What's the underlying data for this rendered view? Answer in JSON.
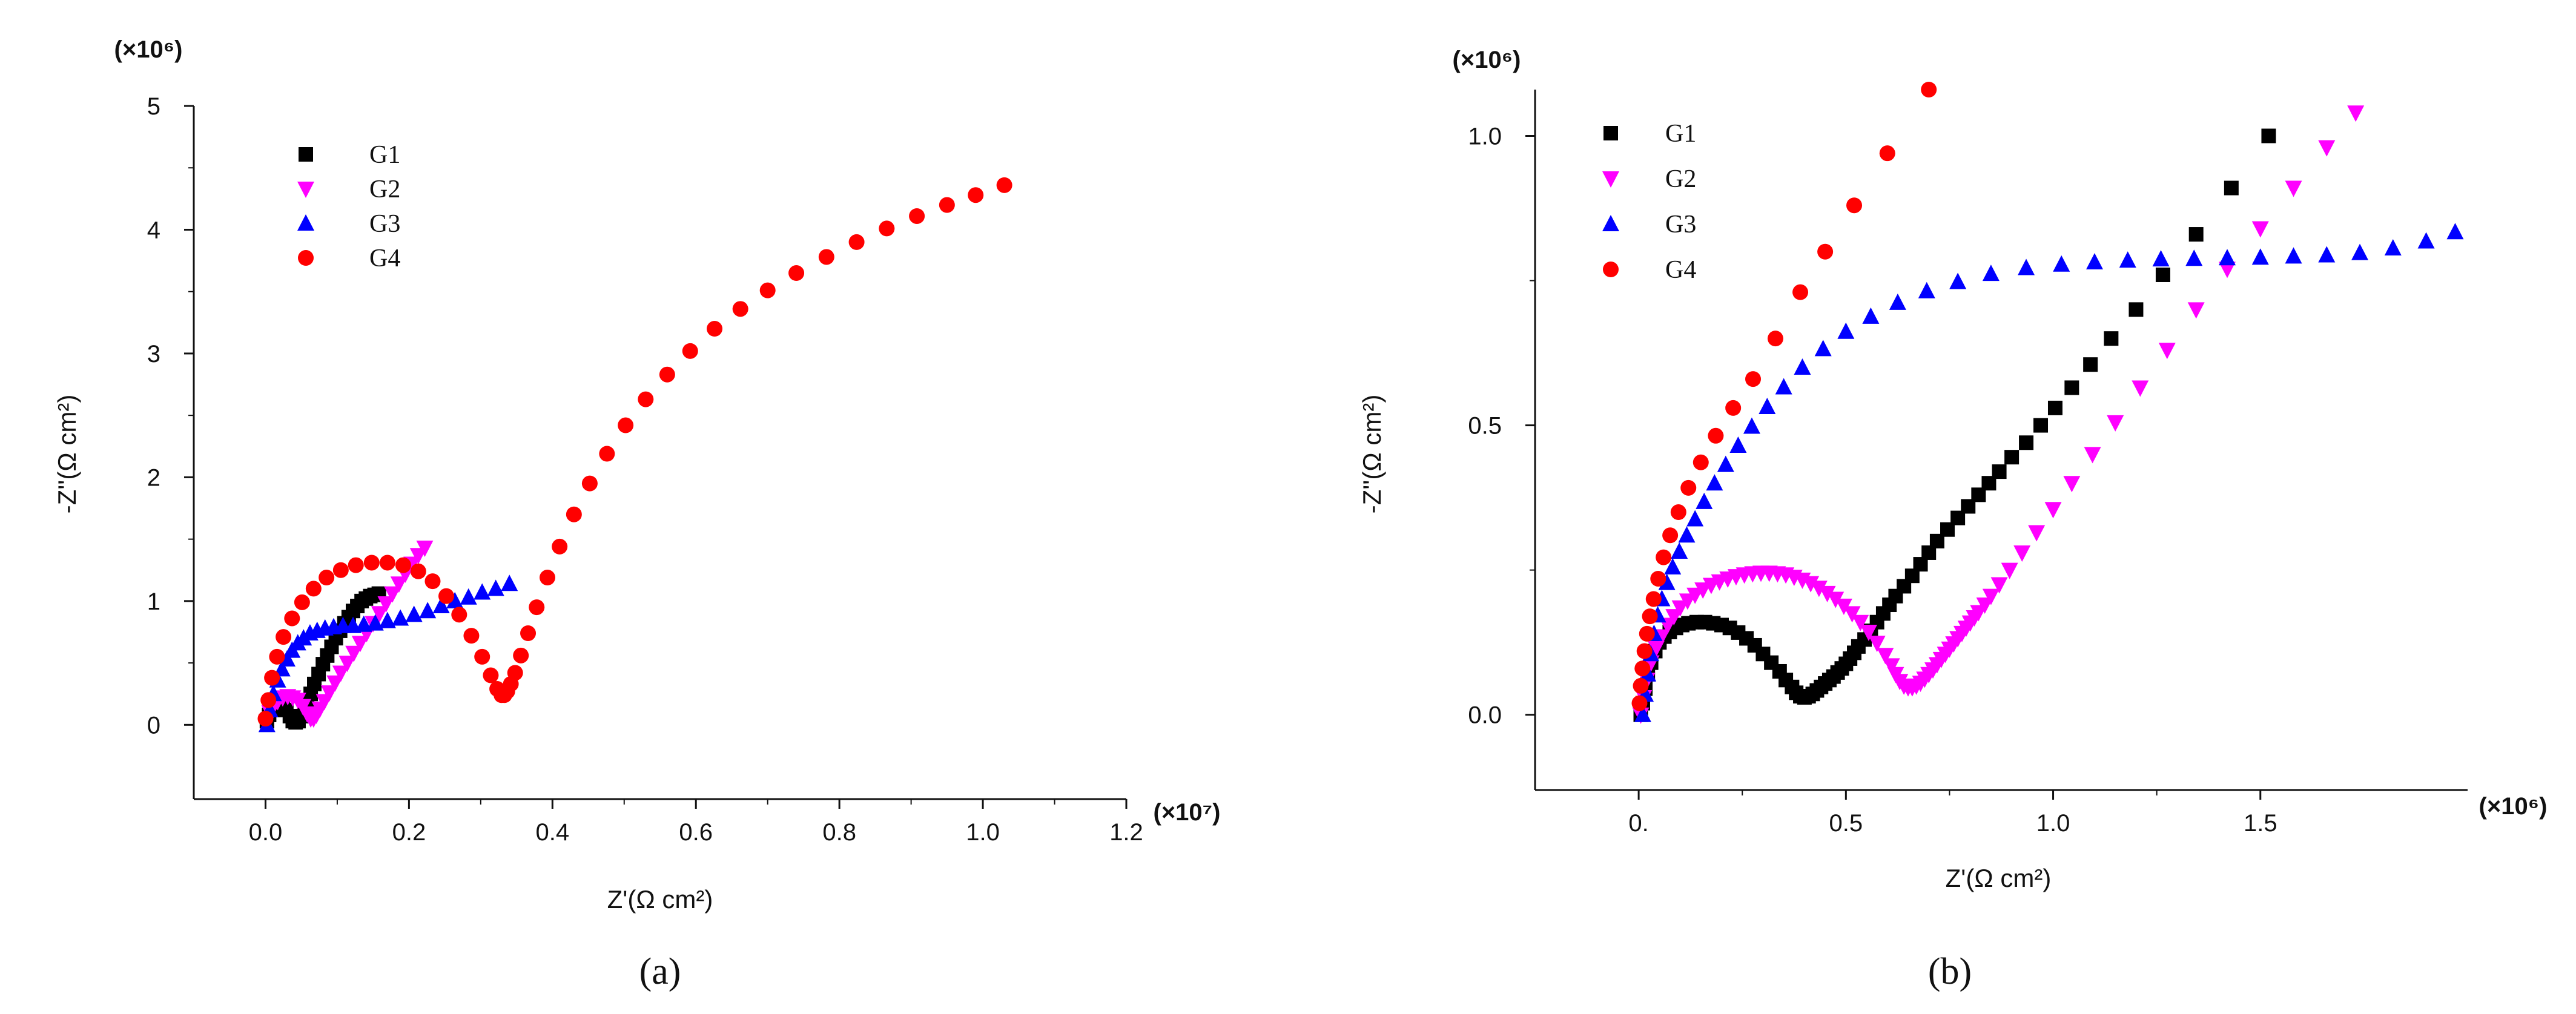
{
  "figure": {
    "panel_a_label": "(a)",
    "panel_b_label": "(b)"
  },
  "colors": {
    "G1": "#000000",
    "G2": "#ff00ff",
    "G3": "#0000ff",
    "G4": "#ff0000"
  },
  "chart_data": [
    {
      "type": "scatter",
      "panel": "a",
      "xlabel": "Z'(Ω cm²)",
      "ylabel": "-Z''(Ω cm²)",
      "x_multiplier": "(×10⁷)",
      "y_multiplier": "(×10⁶)",
      "xlim": [
        -0.1,
        1.2
      ],
      "ylim": [
        -0.6,
        5
      ],
      "xticks": [
        0.0,
        0.2,
        0.4,
        0.6,
        0.8,
        1.0,
        1.2
      ],
      "xtick_labels": [
        "0.0",
        "0.2",
        "0.4",
        "0.6",
        "0.8",
        "1.0",
        "1.2"
      ],
      "yticks": [
        0,
        1,
        2,
        3,
        4,
        5
      ],
      "ytick_labels": [
        "0",
        "1",
        "2",
        "3",
        "4",
        "5"
      ],
      "legend": {
        "placement": "top-left",
        "entries": [
          "G1",
          "G2",
          "G3",
          "G4"
        ]
      },
      "series": [
        {
          "name": "G1",
          "marker": "square",
          "color": "#000000",
          "x": [
            0.002,
            0.005,
            0.009,
            0.014,
            0.019,
            0.024,
            0.029,
            0.034,
            0.038,
            0.042,
            0.046,
            0.05,
            0.054,
            0.058,
            0.063,
            0.068,
            0.074,
            0.08,
            0.086,
            0.092,
            0.098,
            0.104,
            0.11,
            0.116,
            0.122,
            0.128,
            0.134,
            0.14,
            0.146,
            0.152,
            0.158
          ],
          "y": [
            0.03,
            0.08,
            0.12,
            0.15,
            0.16,
            0.15,
            0.12,
            0.07,
            0.03,
            0.02,
            0.03,
            0.07,
            0.12,
            0.18,
            0.25,
            0.33,
            0.41,
            0.49,
            0.56,
            0.63,
            0.7,
            0.76,
            0.82,
            0.87,
            0.92,
            0.96,
            1.0,
            1.02,
            1.04,
            1.05,
            1.06
          ]
        },
        {
          "name": "G2",
          "marker": "triangle-down",
          "color": "#ff00ff",
          "x": [
            0.002,
            0.006,
            0.011,
            0.017,
            0.024,
            0.031,
            0.038,
            0.045,
            0.052,
            0.058,
            0.063,
            0.067,
            0.071,
            0.076,
            0.082,
            0.089,
            0.097,
            0.105,
            0.114,
            0.123,
            0.132,
            0.141,
            0.15,
            0.159,
            0.168,
            0.177,
            0.186,
            0.195,
            0.204,
            0.213,
            0.222
          ],
          "y": [
            0.03,
            0.1,
            0.15,
            0.19,
            0.22,
            0.23,
            0.22,
            0.2,
            0.15,
            0.09,
            0.05,
            0.05,
            0.08,
            0.13,
            0.19,
            0.26,
            0.34,
            0.42,
            0.5,
            0.58,
            0.66,
            0.74,
            0.82,
            0.9,
            0.98,
            1.06,
            1.14,
            1.22,
            1.3,
            1.37,
            1.43
          ]
        },
        {
          "name": "G3",
          "marker": "triangle-up",
          "color": "#0000ff",
          "x": [
            0.002,
            0.006,
            0.011,
            0.017,
            0.023,
            0.03,
            0.037,
            0.045,
            0.053,
            0.062,
            0.072,
            0.083,
            0.095,
            0.108,
            0.122,
            0.137,
            0.153,
            0.17,
            0.188,
            0.207,
            0.226,
            0.245,
            0.264,
            0.283,
            0.302,
            0.321,
            0.34
          ],
          "y": [
            0.0,
            0.12,
            0.25,
            0.36,
            0.45,
            0.53,
            0.6,
            0.66,
            0.7,
            0.74,
            0.76,
            0.78,
            0.79,
            0.8,
            0.8,
            0.81,
            0.82,
            0.84,
            0.86,
            0.89,
            0.92,
            0.96,
            1.0,
            1.03,
            1.07,
            1.1,
            1.14
          ]
        },
        {
          "name": "G4",
          "marker": "circle",
          "color": "#ff0000",
          "x": [
            0.0,
            0.004,
            0.009,
            0.016,
            0.025,
            0.037,
            0.051,
            0.067,
            0.085,
            0.105,
            0.126,
            0.148,
            0.17,
            0.192,
            0.213,
            0.233,
            0.252,
            0.27,
            0.287,
            0.302,
            0.314,
            0.323,
            0.329,
            0.333,
            0.337,
            0.342,
            0.348,
            0.356,
            0.366,
            0.378,
            0.393,
            0.41,
            0.43,
            0.452,
            0.476,
            0.502,
            0.53,
            0.56,
            0.592,
            0.626,
            0.662,
            0.7,
            0.74,
            0.782,
            0.824,
            0.866,
            0.908,
            0.95,
            0.99,
            1.03
          ],
          "y": [
            0.05,
            0.2,
            0.38,
            0.55,
            0.71,
            0.86,
            0.99,
            1.1,
            1.19,
            1.25,
            1.29,
            1.31,
            1.31,
            1.29,
            1.24,
            1.16,
            1.04,
            0.89,
            0.72,
            0.55,
            0.4,
            0.29,
            0.24,
            0.24,
            0.27,
            0.33,
            0.42,
            0.56,
            0.74,
            0.95,
            1.19,
            1.44,
            1.7,
            1.95,
            2.19,
            2.42,
            2.63,
            2.83,
            3.02,
            3.2,
            3.36,
            3.51,
            3.65,
            3.78,
            3.9,
            4.01,
            4.11,
            4.2,
            4.28,
            4.36
          ]
        }
      ]
    },
    {
      "type": "scatter",
      "panel": "b",
      "xlabel": "Z'(Ω cm²)",
      "ylabel": "-Z''(Ω cm²)",
      "x_multiplier": "(×10⁶)",
      "y_multiplier": "(×10⁶)",
      "xlim": [
        -0.25,
        2.0
      ],
      "ylim": [
        -0.13,
        1.08
      ],
      "xticks": [
        0.0,
        0.5,
        1.0,
        1.5
      ],
      "xtick_labels": [
        "0.",
        "0.5",
        "1.0",
        "1.5"
      ],
      "yticks": [
        0.0,
        0.5,
        1.0
      ],
      "ytick_labels": [
        "0.0",
        "0.5",
        "1.0"
      ],
      "legend": {
        "placement": "top-left",
        "entries": [
          "G1",
          "G2",
          "G3",
          "G4"
        ]
      },
      "series": [
        {
          "name": "G1",
          "marker": "square",
          "color": "#000000",
          "x": [
            0.005,
            0.01,
            0.016,
            0.022,
            0.03,
            0.04,
            0.05,
            0.062,
            0.075,
            0.09,
            0.105,
            0.12,
            0.14,
            0.16,
            0.18,
            0.2,
            0.22,
            0.24,
            0.26,
            0.28,
            0.3,
            0.32,
            0.34,
            0.355,
            0.37,
            0.38,
            0.39,
            0.4,
            0.41,
            0.42,
            0.43,
            0.44,
            0.45,
            0.46,
            0.47,
            0.48,
            0.49,
            0.5,
            0.51,
            0.52,
            0.53,
            0.545,
            0.56,
            0.575,
            0.59,
            0.605,
            0.62,
            0.64,
            0.66,
            0.68,
            0.7,
            0.72,
            0.745,
            0.77,
            0.795,
            0.82,
            0.845,
            0.87,
            0.9,
            0.935,
            0.97,
            1.005,
            1.045,
            1.09,
            1.14,
            1.2,
            1.265,
            1.345,
            1.43,
            1.52
          ],
          "y": [
            0.0,
            0.02,
            0.045,
            0.07,
            0.09,
            0.11,
            0.125,
            0.135,
            0.143,
            0.15,
            0.155,
            0.158,
            0.16,
            0.16,
            0.158,
            0.155,
            0.15,
            0.142,
            0.132,
            0.12,
            0.105,
            0.09,
            0.075,
            0.06,
            0.048,
            0.038,
            0.032,
            0.03,
            0.032,
            0.036,
            0.042,
            0.048,
            0.054,
            0.06,
            0.066,
            0.073,
            0.08,
            0.088,
            0.097,
            0.107,
            0.118,
            0.13,
            0.145,
            0.16,
            0.175,
            0.19,
            0.205,
            0.222,
            0.24,
            0.26,
            0.28,
            0.3,
            0.32,
            0.34,
            0.36,
            0.38,
            0.4,
            0.42,
            0.445,
            0.47,
            0.5,
            0.53,
            0.565,
            0.605,
            0.65,
            0.7,
            0.76,
            0.83,
            0.91,
            1.0
          ]
        },
        {
          "name": "G2",
          "marker": "triangle-down",
          "color": "#ff00ff",
          "x": [
            0.005,
            0.012,
            0.02,
            0.03,
            0.042,
            0.055,
            0.07,
            0.085,
            0.1,
            0.118,
            0.136,
            0.155,
            0.175,
            0.195,
            0.215,
            0.235,
            0.255,
            0.275,
            0.295,
            0.315,
            0.335,
            0.355,
            0.375,
            0.395,
            0.415,
            0.435,
            0.455,
            0.475,
            0.495,
            0.515,
            0.535,
            0.555,
            0.575,
            0.595,
            0.61,
            0.62,
            0.63,
            0.64,
            0.65,
            0.66,
            0.67,
            0.68,
            0.69,
            0.7,
            0.71,
            0.72,
            0.73,
            0.74,
            0.75,
            0.76,
            0.77,
            0.78,
            0.79,
            0.8,
            0.81,
            0.82,
            0.835,
            0.85,
            0.87,
            0.895,
            0.925,
            0.96,
            1.0,
            1.045,
            1.095,
            1.15,
            1.21,
            1.275,
            1.345,
            1.42,
            1.5,
            1.58,
            1.66,
            1.73
          ],
          "y": [
            0.0,
            0.03,
            0.06,
            0.09,
            0.115,
            0.135,
            0.155,
            0.17,
            0.185,
            0.197,
            0.207,
            0.216,
            0.224,
            0.23,
            0.235,
            0.239,
            0.242,
            0.244,
            0.245,
            0.245,
            0.244,
            0.242,
            0.238,
            0.233,
            0.227,
            0.219,
            0.21,
            0.2,
            0.188,
            0.175,
            0.16,
            0.143,
            0.124,
            0.103,
            0.085,
            0.07,
            0.058,
            0.05,
            0.047,
            0.047,
            0.05,
            0.055,
            0.062,
            0.07,
            0.078,
            0.087,
            0.096,
            0.105,
            0.114,
            0.123,
            0.132,
            0.141,
            0.15,
            0.159,
            0.168,
            0.177,
            0.19,
            0.205,
            0.225,
            0.25,
            0.28,
            0.315,
            0.355,
            0.4,
            0.45,
            0.505,
            0.565,
            0.63,
            0.7,
            0.77,
            0.84,
            0.91,
            0.98,
            1.04
          ]
        },
        {
          "name": "G3",
          "marker": "triangle-up",
          "color": "#0000ff",
          "x": [
            0.01,
            0.016,
            0.022,
            0.029,
            0.037,
            0.046,
            0.056,
            0.068,
            0.082,
            0.098,
            0.116,
            0.136,
            0.158,
            0.183,
            0.21,
            0.24,
            0.273,
            0.31,
            0.35,
            0.395,
            0.445,
            0.5,
            0.56,
            0.625,
            0.695,
            0.77,
            0.85,
            0.935,
            1.02,
            1.1,
            1.18,
            1.26,
            1.34,
            1.42,
            1.5,
            1.58,
            1.66,
            1.74,
            1.82,
            1.9,
            1.97
          ],
          "y": [
            0.0,
            0.035,
            0.07,
            0.105,
            0.14,
            0.172,
            0.2,
            0.228,
            0.255,
            0.282,
            0.31,
            0.338,
            0.368,
            0.4,
            0.432,
            0.465,
            0.498,
            0.532,
            0.566,
            0.6,
            0.632,
            0.662,
            0.688,
            0.712,
            0.732,
            0.748,
            0.762,
            0.772,
            0.778,
            0.782,
            0.785,
            0.787,
            0.788,
            0.789,
            0.79,
            0.792,
            0.794,
            0.798,
            0.806,
            0.818,
            0.834
          ]
        },
        {
          "name": "G4",
          "marker": "circle",
          "color": "#ff0000",
          "x": [
            0.002,
            0.005,
            0.009,
            0.014,
            0.02,
            0.027,
            0.036,
            0.047,
            0.06,
            0.076,
            0.096,
            0.12,
            0.15,
            0.186,
            0.228,
            0.276,
            0.33,
            0.39,
            0.45,
            0.52,
            0.6,
            0.7
          ],
          "y": [
            0.02,
            0.05,
            0.08,
            0.11,
            0.14,
            0.17,
            0.2,
            0.235,
            0.272,
            0.31,
            0.35,
            0.392,
            0.436,
            0.482,
            0.53,
            0.58,
            0.65,
            0.73,
            0.8,
            0.88,
            0.97,
            1.08
          ]
        }
      ]
    }
  ]
}
